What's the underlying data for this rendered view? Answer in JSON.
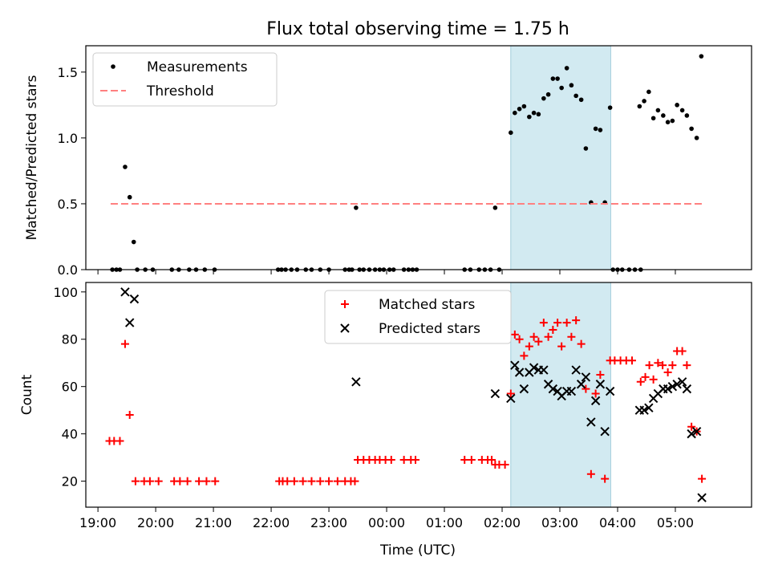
{
  "title": "Flux total observing time = 1.75 h",
  "xlabel": "Time (UTC)",
  "x_ticks": [
    "19:00",
    "20:00",
    "21:00",
    "22:00",
    "23:00",
    "00:00",
    "01:00",
    "02:00",
    "03:00",
    "04:00",
    "05:00"
  ],
  "shaded_span": {
    "start_h": 2.15,
    "end_h": 3.88,
    "color": "#add8e6"
  },
  "chart_data": [
    {
      "type": "scatter",
      "ylabel": "Matched/Predicted stars",
      "ylim": [
        0,
        1.7
      ],
      "y_ticks": [
        "0.0",
        "0.5",
        "1.0",
        "1.5"
      ],
      "y_tick_values": [
        0,
        0.5,
        1.0,
        1.5
      ],
      "legend_position": "upper-left",
      "series": [
        {
          "name": "Measurements",
          "marker": "dot",
          "color": "#000000",
          "points": [
            [
              -4.75,
              0
            ],
            [
              -4.68,
              0
            ],
            [
              -4.62,
              0
            ],
            [
              -4.53,
              0.78
            ],
            [
              -4.45,
              0.55
            ],
            [
              -4.38,
              0.21
            ],
            [
              -4.32,
              0
            ],
            [
              -4.18,
              0
            ],
            [
              -4.05,
              0
            ],
            [
              -3.72,
              0
            ],
            [
              -3.6,
              0
            ],
            [
              -3.42,
              0
            ],
            [
              -3.3,
              0
            ],
            [
              -3.15,
              0
            ],
            [
              -2.98,
              0
            ],
            [
              -1.88,
              0
            ],
            [
              -1.82,
              0
            ],
            [
              -1.75,
              0
            ],
            [
              -1.65,
              0
            ],
            [
              -1.55,
              0
            ],
            [
              -1.4,
              0
            ],
            [
              -1.3,
              0
            ],
            [
              -1.15,
              0
            ],
            [
              -1.0,
              0
            ],
            [
              -0.72,
              0
            ],
            [
              -0.65,
              0
            ],
            [
              -0.6,
              0
            ],
            [
              -0.53,
              0.47
            ],
            [
              -0.47,
              0
            ],
            [
              -0.4,
              0
            ],
            [
              -0.3,
              0
            ],
            [
              -0.2,
              0
            ],
            [
              -0.12,
              0
            ],
            [
              -0.05,
              0
            ],
            [
              0.05,
              0
            ],
            [
              0.12,
              0
            ],
            [
              0.3,
              0
            ],
            [
              0.38,
              0
            ],
            [
              0.45,
              0
            ],
            [
              0.52,
              0
            ],
            [
              1.35,
              0
            ],
            [
              1.45,
              0
            ],
            [
              1.6,
              0
            ],
            [
              1.7,
              0
            ],
            [
              1.8,
              0
            ],
            [
              1.88,
              0.47
            ],
            [
              1.95,
              0
            ],
            [
              2.15,
              1.04
            ],
            [
              2.22,
              1.19
            ],
            [
              2.3,
              1.22
            ],
            [
              2.38,
              1.24
            ],
            [
              2.47,
              1.16
            ],
            [
              2.55,
              1.19
            ],
            [
              2.63,
              1.18
            ],
            [
              2.72,
              1.3
            ],
            [
              2.8,
              1.33
            ],
            [
              2.88,
              1.45
            ],
            [
              2.96,
              1.45
            ],
            [
              3.03,
              1.38
            ],
            [
              3.12,
              1.53
            ],
            [
              3.2,
              1.4
            ],
            [
              3.28,
              1.32
            ],
            [
              3.37,
              1.29
            ],
            [
              3.45,
              0.92
            ],
            [
              3.54,
              0.51
            ],
            [
              3.62,
              1.07
            ],
            [
              3.7,
              1.06
            ],
            [
              3.78,
              0.51
            ],
            [
              3.87,
              1.23
            ],
            [
              3.92,
              0
            ],
            [
              4.0,
              0
            ],
            [
              4.08,
              0
            ],
            [
              4.2,
              0
            ],
            [
              4.3,
              0
            ],
            [
              4.4,
              0
            ],
            [
              4.38,
              1.24
            ],
            [
              4.46,
              1.28
            ],
            [
              4.54,
              1.35
            ],
            [
              4.62,
              1.15
            ],
            [
              4.7,
              1.21
            ],
            [
              4.79,
              1.17
            ],
            [
              4.87,
              1.12
            ],
            [
              4.95,
              1.13
            ],
            [
              5.03,
              1.25
            ],
            [
              5.12,
              1.21
            ],
            [
              5.2,
              1.17
            ],
            [
              5.28,
              1.07
            ],
            [
              5.37,
              1.0
            ],
            [
              5.45,
              1.62
            ]
          ]
        },
        {
          "name": "Threshold",
          "marker": "dashed-line",
          "color": "#ff8080",
          "points": [
            [
              -4.78,
              0.5
            ],
            [
              5.48,
              0.5
            ]
          ]
        }
      ]
    },
    {
      "type": "scatter",
      "ylabel": "Count",
      "ylim": [
        9,
        104
      ],
      "y_ticks": [
        "20",
        "40",
        "60",
        "80",
        "100"
      ],
      "y_tick_values": [
        20,
        40,
        60,
        80,
        100
      ],
      "legend_position": "upper-center",
      "series": [
        {
          "name": "Matched stars",
          "marker": "plus",
          "color": "#ff0000",
          "points": [
            [
              -4.8,
              37
            ],
            [
              -4.72,
              37
            ],
            [
              -4.62,
              37
            ],
            [
              -4.53,
              78
            ],
            [
              -4.45,
              48
            ],
            [
              -4.35,
              20
            ],
            [
              -4.2,
              20
            ],
            [
              -4.1,
              20
            ],
            [
              -3.95,
              20
            ],
            [
              -3.68,
              20
            ],
            [
              -3.58,
              20
            ],
            [
              -3.45,
              20
            ],
            [
              -3.25,
              20
            ],
            [
              -3.12,
              20
            ],
            [
              -2.97,
              20
            ],
            [
              -1.86,
              20
            ],
            [
              -1.8,
              20
            ],
            [
              -1.72,
              20
            ],
            [
              -1.6,
              20
            ],
            [
              -1.45,
              20
            ],
            [
              -1.3,
              20
            ],
            [
              -1.15,
              20
            ],
            [
              -1.0,
              20
            ],
            [
              -0.85,
              20
            ],
            [
              -0.72,
              20
            ],
            [
              -0.62,
              20
            ],
            [
              -0.55,
              20
            ],
            [
              -0.5,
              29
            ],
            [
              -0.4,
              29
            ],
            [
              -0.3,
              29
            ],
            [
              -0.2,
              29
            ],
            [
              -0.12,
              29
            ],
            [
              -0.02,
              29
            ],
            [
              0.08,
              29
            ],
            [
              0.3,
              29
            ],
            [
              0.42,
              29
            ],
            [
              0.5,
              29
            ],
            [
              1.35,
              29
            ],
            [
              1.47,
              29
            ],
            [
              1.65,
              29
            ],
            [
              1.75,
              29
            ],
            [
              1.82,
              29
            ],
            [
              1.88,
              27
            ],
            [
              1.95,
              27
            ],
            [
              2.05,
              27
            ],
            [
              2.15,
              57
            ],
            [
              2.22,
              82
            ],
            [
              2.3,
              80
            ],
            [
              2.38,
              73
            ],
            [
              2.47,
              77
            ],
            [
              2.55,
              81
            ],
            [
              2.63,
              79
            ],
            [
              2.72,
              87
            ],
            [
              2.8,
              81
            ],
            [
              2.88,
              84
            ],
            [
              2.96,
              87
            ],
            [
              3.03,
              77
            ],
            [
              3.12,
              87
            ],
            [
              3.2,
              81
            ],
            [
              3.28,
              88
            ],
            [
              3.37,
              78
            ],
            [
              3.45,
              59
            ],
            [
              3.54,
              23
            ],
            [
              3.62,
              57
            ],
            [
              3.7,
              65
            ],
            [
              3.78,
              21
            ],
            [
              3.87,
              71
            ],
            [
              3.95,
              71
            ],
            [
              4.05,
              71
            ],
            [
              4.15,
              71
            ],
            [
              4.25,
              71
            ],
            [
              4.4,
              62
            ],
            [
              4.48,
              64
            ],
            [
              4.55,
              69
            ],
            [
              4.62,
              63
            ],
            [
              4.7,
              70
            ],
            [
              4.78,
              69
            ],
            [
              4.87,
              66
            ],
            [
              4.95,
              69
            ],
            [
              5.03,
              75
            ],
            [
              5.12,
              75
            ],
            [
              5.2,
              69
            ],
            [
              5.28,
              43
            ],
            [
              5.37,
              41
            ],
            [
              5.46,
              21
            ]
          ]
        },
        {
          "name": "Predicted stars",
          "marker": "cross",
          "color": "#000000",
          "points": [
            [
              -4.53,
              100
            ],
            [
              -4.45,
              87
            ],
            [
              -4.37,
              97
            ],
            [
              -0.53,
              62
            ],
            [
              1.88,
              57
            ],
            [
              2.15,
              55
            ],
            [
              2.22,
              69
            ],
            [
              2.3,
              66
            ],
            [
              2.38,
              59
            ],
            [
              2.47,
              66
            ],
            [
              2.55,
              68
            ],
            [
              2.63,
              67
            ],
            [
              2.72,
              67
            ],
            [
              2.8,
              61
            ],
            [
              2.88,
              59
            ],
            [
              2.96,
              58
            ],
            [
              3.03,
              56
            ],
            [
              3.12,
              58
            ],
            [
              3.2,
              58
            ],
            [
              3.28,
              67
            ],
            [
              3.37,
              61
            ],
            [
              3.45,
              64
            ],
            [
              3.54,
              45
            ],
            [
              3.62,
              54
            ],
            [
              3.7,
              61
            ],
            [
              3.78,
              41
            ],
            [
              3.87,
              58
            ],
            [
              4.38,
              50
            ],
            [
              4.46,
              50
            ],
            [
              4.54,
              51
            ],
            [
              4.62,
              55
            ],
            [
              4.7,
              57
            ],
            [
              4.79,
              59
            ],
            [
              4.87,
              59
            ],
            [
              4.95,
              60
            ],
            [
              5.03,
              61
            ],
            [
              5.12,
              62
            ],
            [
              5.2,
              59
            ],
            [
              5.28,
              40
            ],
            [
              5.37,
              41
            ],
            [
              5.46,
              13
            ]
          ]
        }
      ]
    }
  ]
}
